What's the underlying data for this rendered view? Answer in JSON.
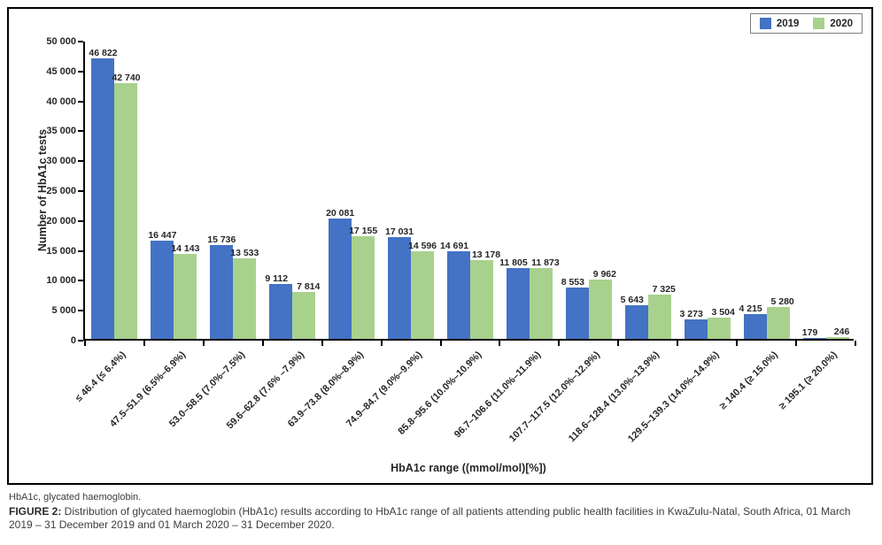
{
  "legend": {
    "items": [
      {
        "label": "2019",
        "color": "#4472C4"
      },
      {
        "label": "2020",
        "color": "#A9D18E"
      }
    ]
  },
  "chart_data": {
    "type": "bar",
    "title": "",
    "xlabel": "HbA1c range ((mmol/mol)[%])",
    "ylabel": "Number of HbA1c tests",
    "ylim": [
      0,
      50000
    ],
    "ytick_step": 5000,
    "grid": false,
    "legend_position": "top-right",
    "value_labels": true,
    "categories": [
      "≤ 46.4 (≤ 6.4%)",
      "47.5–51.9 (6.5%–6.9%)",
      "53.0–58.5 (7.0%–7.5%)",
      "59.6–62.8 (7.6% –7.9%)",
      "63.9–73.8 (8.0%–8.9%)",
      "74.9–84.7 (9.0%–9.9%)",
      "85.8–95.6 (10.0%–10.9%)",
      "96.7–106.6 (11.0%–11.9%)",
      "107.7–117.5 (12.0%–12.9%)",
      "118.6–128.4 (13.0%–13.9%)",
      "129.5–139.3 (14.0%–14.9%)",
      "≥ 140.4 (≥ 15.0%)",
      "≥ 195.1 (≥ 20.0%)"
    ],
    "series": [
      {
        "name": "2019",
        "color": "#4472C4",
        "values": [
          46822,
          16447,
          15736,
          9112,
          20081,
          17031,
          14691,
          11805,
          8553,
          5643,
          3273,
          4215,
          179
        ]
      },
      {
        "name": "2020",
        "color": "#A9D18E",
        "values": [
          42740,
          14143,
          13533,
          7814,
          17155,
          14596,
          13178,
          11873,
          9962,
          7325,
          3504,
          5280,
          246
        ]
      }
    ]
  },
  "footnote": "HbA1c, glycated haemoglobin.",
  "caption": {
    "label": "FIGURE 2:",
    "text": " Distribution of glycated haemoglobin (HbA1c) results according to HbA1c range of all patients attending public health facilities in KwaZulu-Natal, South Africa, 01 March 2019 – 31 December 2019 and 01 March 2020 – 31 December 2020."
  }
}
